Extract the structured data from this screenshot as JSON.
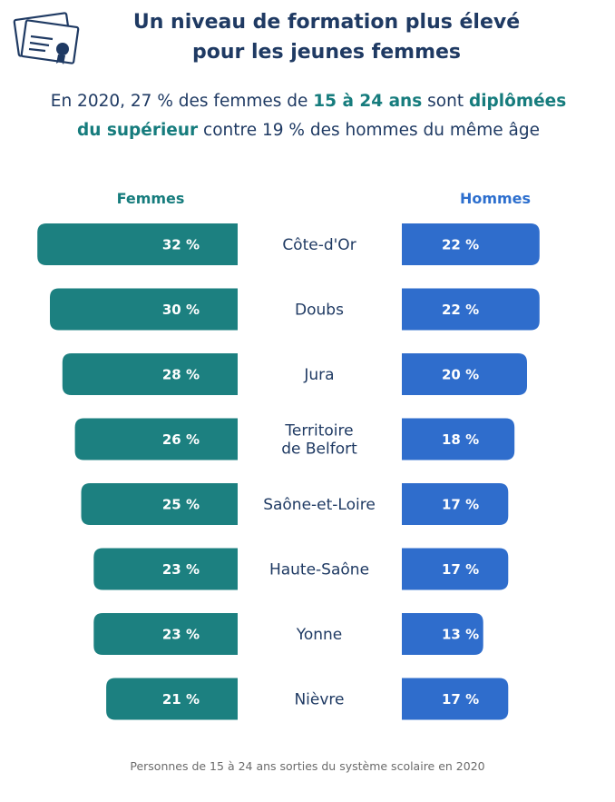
{
  "header": {
    "title_line1": "Un niveau de formation plus élevé",
    "title_line2": "pour les jeunes femmes",
    "subtitle_a": "En 2020, 27 % des femmes de ",
    "subtitle_b": "15 à 24 ans",
    "subtitle_c": " sont ",
    "subtitle_d": "diplômées",
    "subtitle_e": "du supérieur",
    "subtitle_f": " contre 19 % des hommes du même âge"
  },
  "icon": "diploma-certificate-icon",
  "colors": {
    "femmes": "#1c8080",
    "hommes": "#2f6dcc",
    "title": "#1f3a63",
    "accent": "#167c7d"
  },
  "chart_data": {
    "type": "bar",
    "orientation": "horizontal-back-to-back",
    "categories": [
      "Côte-d'Or",
      "Doubs",
      "Jura",
      "Territoire de Belfort",
      "Saône-et-Loire",
      "Haute-Saône",
      "Yonne",
      "Nièvre"
    ],
    "series": [
      {
        "name": "Femmes",
        "values": [
          32,
          30,
          28,
          26,
          25,
          23,
          23,
          21
        ],
        "labels": [
          "32 %",
          "30 %",
          "28 %",
          "26 %",
          "25 %",
          "23 %",
          "23 %",
          "21 %"
        ]
      },
      {
        "name": "Hommes",
        "values": [
          22,
          22,
          20,
          18,
          17,
          17,
          13,
          17
        ],
        "labels": [
          "22 %",
          "22 %",
          "20 %",
          "18 %",
          "17 %",
          "17 %",
          "13 %",
          "17 %"
        ]
      }
    ],
    "unit": "%"
  },
  "footnote": "Personnes de 15 à 24 ans sorties du système scolaire en 2020"
}
